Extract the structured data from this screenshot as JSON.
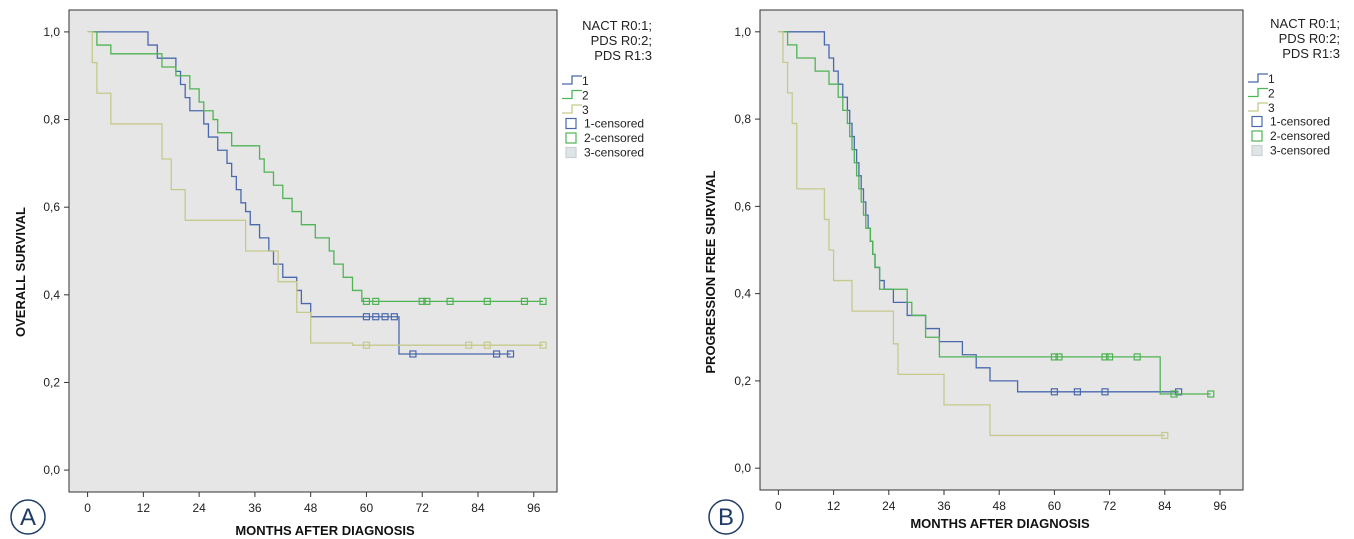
{
  "chart_data": [
    {
      "type": "line",
      "subtype": "kaplan-meier",
      "panel_label": "A",
      "xlabel": "MONTHS AFTER DIAGNOSIS",
      "ylabel": "OVERALL SURVIVAL",
      "xlim": [
        -4,
        101
      ],
      "ylim": [
        -0.05,
        1.05
      ],
      "xticks": [
        0,
        12,
        24,
        36,
        48,
        60,
        72,
        84,
        96
      ],
      "yticks": [
        0.0,
        0.2,
        0.4,
        0.6,
        0.8,
        1.0
      ],
      "ytick_labels": [
        "0,0",
        "0,2",
        "0,4",
        "0,6",
        "0,8",
        "1,0"
      ],
      "grid": false,
      "legend_position": "right",
      "legend_title": [
        "NACT R0:1;",
        "PDS R0:2;",
        "PDS R1:3"
      ],
      "legend_entries": [
        "1",
        "2",
        "3",
        "1-censored",
        "2-censored",
        "3-censored"
      ],
      "background": "#e6e6e6",
      "series": [
        {
          "name": "1",
          "color": "#4a69ad",
          "steps": [
            [
              0,
              1.0
            ],
            [
              13,
              0.97
            ],
            [
              15,
              0.94
            ],
            [
              19,
              0.91
            ],
            [
              20,
              0.88
            ],
            [
              21,
              0.85
            ],
            [
              22,
              0.82
            ],
            [
              25,
              0.79
            ],
            [
              26,
              0.76
            ],
            [
              28,
              0.73
            ],
            [
              30,
              0.7
            ],
            [
              31,
              0.67
            ],
            [
              32,
              0.64
            ],
            [
              33,
              0.61
            ],
            [
              34,
              0.59
            ],
            [
              35,
              0.56
            ],
            [
              37,
              0.53
            ],
            [
              39,
              0.5
            ],
            [
              40,
              0.47
            ],
            [
              42,
              0.44
            ],
            [
              45,
              0.41
            ],
            [
              46,
              0.38
            ],
            [
              48,
              0.35
            ],
            [
              67,
              0.265
            ]
          ],
          "end": 91,
          "censored": [
            60,
            62,
            64,
            66,
            70,
            88,
            91
          ]
        },
        {
          "name": "2",
          "color": "#4fb454",
          "steps": [
            [
              0,
              1.0
            ],
            [
              2,
              0.97
            ],
            [
              5,
              0.95
            ],
            [
              16,
              0.92
            ],
            [
              19,
              0.9
            ],
            [
              22,
              0.87
            ],
            [
              24,
              0.84
            ],
            [
              25,
              0.82
            ],
            [
              27,
              0.8
            ],
            [
              28,
              0.77
            ],
            [
              31,
              0.74
            ],
            [
              37,
              0.71
            ],
            [
              38,
              0.68
            ],
            [
              40,
              0.65
            ],
            [
              42,
              0.62
            ],
            [
              44,
              0.59
            ],
            [
              46,
              0.56
            ],
            [
              49,
              0.53
            ],
            [
              52,
              0.5
            ],
            [
              53,
              0.47
            ],
            [
              55,
              0.44
            ],
            [
              57,
              0.41
            ],
            [
              59,
              0.385
            ]
          ],
          "end": 98,
          "censored": [
            60,
            62,
            72,
            73,
            78,
            86,
            94,
            98
          ]
        },
        {
          "name": "3",
          "color": "#c6c98c",
          "steps": [
            [
              0,
              1.0
            ],
            [
              1,
              0.93
            ],
            [
              2,
              0.86
            ],
            [
              5,
              0.79
            ],
            [
              16,
              0.71
            ],
            [
              18,
              0.64
            ],
            [
              21,
              0.57
            ],
            [
              34,
              0.5
            ],
            [
              41,
              0.43
            ],
            [
              45,
              0.36
            ],
            [
              48,
              0.29
            ],
            [
              57,
              0.285
            ]
          ],
          "end": 98,
          "censored": [
            60,
            82,
            86,
            98
          ]
        }
      ]
    },
    {
      "type": "line",
      "subtype": "kaplan-meier",
      "panel_label": "B",
      "xlabel": "MONTHS AFTER DIAGNOSIS",
      "ylabel": "PROGRESSION FREE SURVIVAL",
      "xlim": [
        -4,
        101
      ],
      "ylim": [
        -0.05,
        1.05
      ],
      "xticks": [
        0,
        12,
        24,
        36,
        48,
        60,
        72,
        84,
        96
      ],
      "yticks": [
        0.0,
        0.2,
        0.4,
        0.6,
        0.8,
        1.0
      ],
      "ytick_labels": [
        "0,0",
        "0,2",
        "0,4",
        "0,6",
        "0,8",
        "1,0"
      ],
      "grid": false,
      "legend_position": "right",
      "legend_title": [
        "NACT R0:1;",
        "PDS R0:2;",
        "PDS R1:3"
      ],
      "legend_entries": [
        "1",
        "2",
        "3",
        "1-censored",
        "2-censored",
        "3-censored"
      ],
      "background": "#e6e6e6",
      "series": [
        {
          "name": "1",
          "color": "#4a69ad",
          "steps": [
            [
              0,
              1.0
            ],
            [
              10,
              0.97
            ],
            [
              11,
              0.94
            ],
            [
              12,
              0.91
            ],
            [
              13,
              0.88
            ],
            [
              14,
              0.85
            ],
            [
              15,
              0.82
            ],
            [
              15.5,
              0.79
            ],
            [
              16,
              0.76
            ],
            [
              16.5,
              0.73
            ],
            [
              17,
              0.7
            ],
            [
              17.5,
              0.67
            ],
            [
              18,
              0.64
            ],
            [
              18.5,
              0.61
            ],
            [
              19,
              0.58
            ],
            [
              19.5,
              0.55
            ],
            [
              20,
              0.52
            ],
            [
              20.5,
              0.49
            ],
            [
              21,
              0.46
            ],
            [
              22,
              0.43
            ],
            [
              23,
              0.41
            ],
            [
              25,
              0.38
            ],
            [
              28,
              0.35
            ],
            [
              32,
              0.32
            ],
            [
              35,
              0.29
            ],
            [
              40,
              0.26
            ],
            [
              43,
              0.23
            ],
            [
              46,
              0.2
            ],
            [
              52,
              0.175
            ]
          ],
          "end": 87,
          "censored": [
            60,
            65,
            71,
            87
          ]
        },
        {
          "name": "2",
          "color": "#4fb454",
          "steps": [
            [
              0,
              1.0
            ],
            [
              2,
              0.97
            ],
            [
              4,
              0.94
            ],
            [
              8,
              0.91
            ],
            [
              11,
              0.88
            ],
            [
              13,
              0.85
            ],
            [
              14,
              0.82
            ],
            [
              15,
              0.79
            ],
            [
              15.5,
              0.76
            ],
            [
              16,
              0.73
            ],
            [
              16.5,
              0.7
            ],
            [
              17,
              0.67
            ],
            [
              17.5,
              0.64
            ],
            [
              18,
              0.61
            ],
            [
              18.5,
              0.58
            ],
            [
              19,
              0.55
            ],
            [
              20,
              0.52
            ],
            [
              20.5,
              0.49
            ],
            [
              21,
              0.46
            ],
            [
              22,
              0.41
            ],
            [
              28,
              0.38
            ],
            [
              29,
              0.35
            ],
            [
              32,
              0.3
            ],
            [
              35,
              0.255
            ],
            [
              83,
              0.17
            ]
          ],
          "end": 94,
          "censored": [
            60,
            61,
            71,
            72,
            78,
            86,
            94
          ]
        },
        {
          "name": "3",
          "color": "#c6c98c",
          "steps": [
            [
              0,
              1.0
            ],
            [
              1,
              0.93
            ],
            [
              2,
              0.86
            ],
            [
              3,
              0.79
            ],
            [
              4,
              0.64
            ],
            [
              10,
              0.57
            ],
            [
              11,
              0.5
            ],
            [
              12,
              0.43
            ],
            [
              16,
              0.36
            ],
            [
              25,
              0.285
            ],
            [
              26,
              0.215
            ],
            [
              36,
              0.145
            ],
            [
              46,
              0.075
            ]
          ],
          "end": 84,
          "censored": [
            84
          ]
        }
      ]
    }
  ]
}
